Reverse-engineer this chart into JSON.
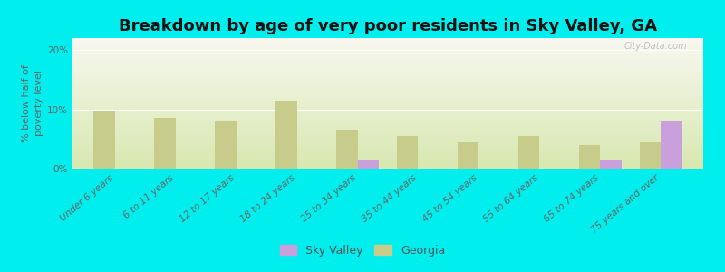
{
  "title": "Breakdown by age of very poor residents in Sky Valley, GA",
  "ylabel": "% below half of\npoverty level",
  "categories": [
    "Under 6 years",
    "6 to 11 years",
    "12 to 17 years",
    "18 to 24 years",
    "25 to 34 years",
    "35 to 44 years",
    "45 to 54 years",
    "55 to 64 years",
    "65 to 74 years",
    "75 years and over"
  ],
  "sky_valley": [
    0,
    0,
    0,
    0,
    1.3,
    0,
    0,
    0,
    1.3,
    8.0
  ],
  "georgia": [
    9.8,
    8.5,
    8.0,
    11.5,
    6.5,
    5.5,
    4.5,
    5.5,
    4.0,
    4.5
  ],
  "sky_valley_color": "#c9a0dc",
  "georgia_color": "#c8cc8a",
  "outer_bg": "#00eeee",
  "plot_bg_top": "#f8f8f0",
  "plot_bg_bottom": "#d8e8b0",
  "ylim": [
    0,
    22
  ],
  "yticks": [
    0,
    10,
    20
  ],
  "ytick_labels": [
    "0%",
    "10%",
    "20%"
  ],
  "bar_width": 0.35,
  "title_fontsize": 13,
  "axis_label_fontsize": 8,
  "tick_fontsize": 7.5,
  "legend_fontsize": 9,
  "watermark": "City-Data.com"
}
